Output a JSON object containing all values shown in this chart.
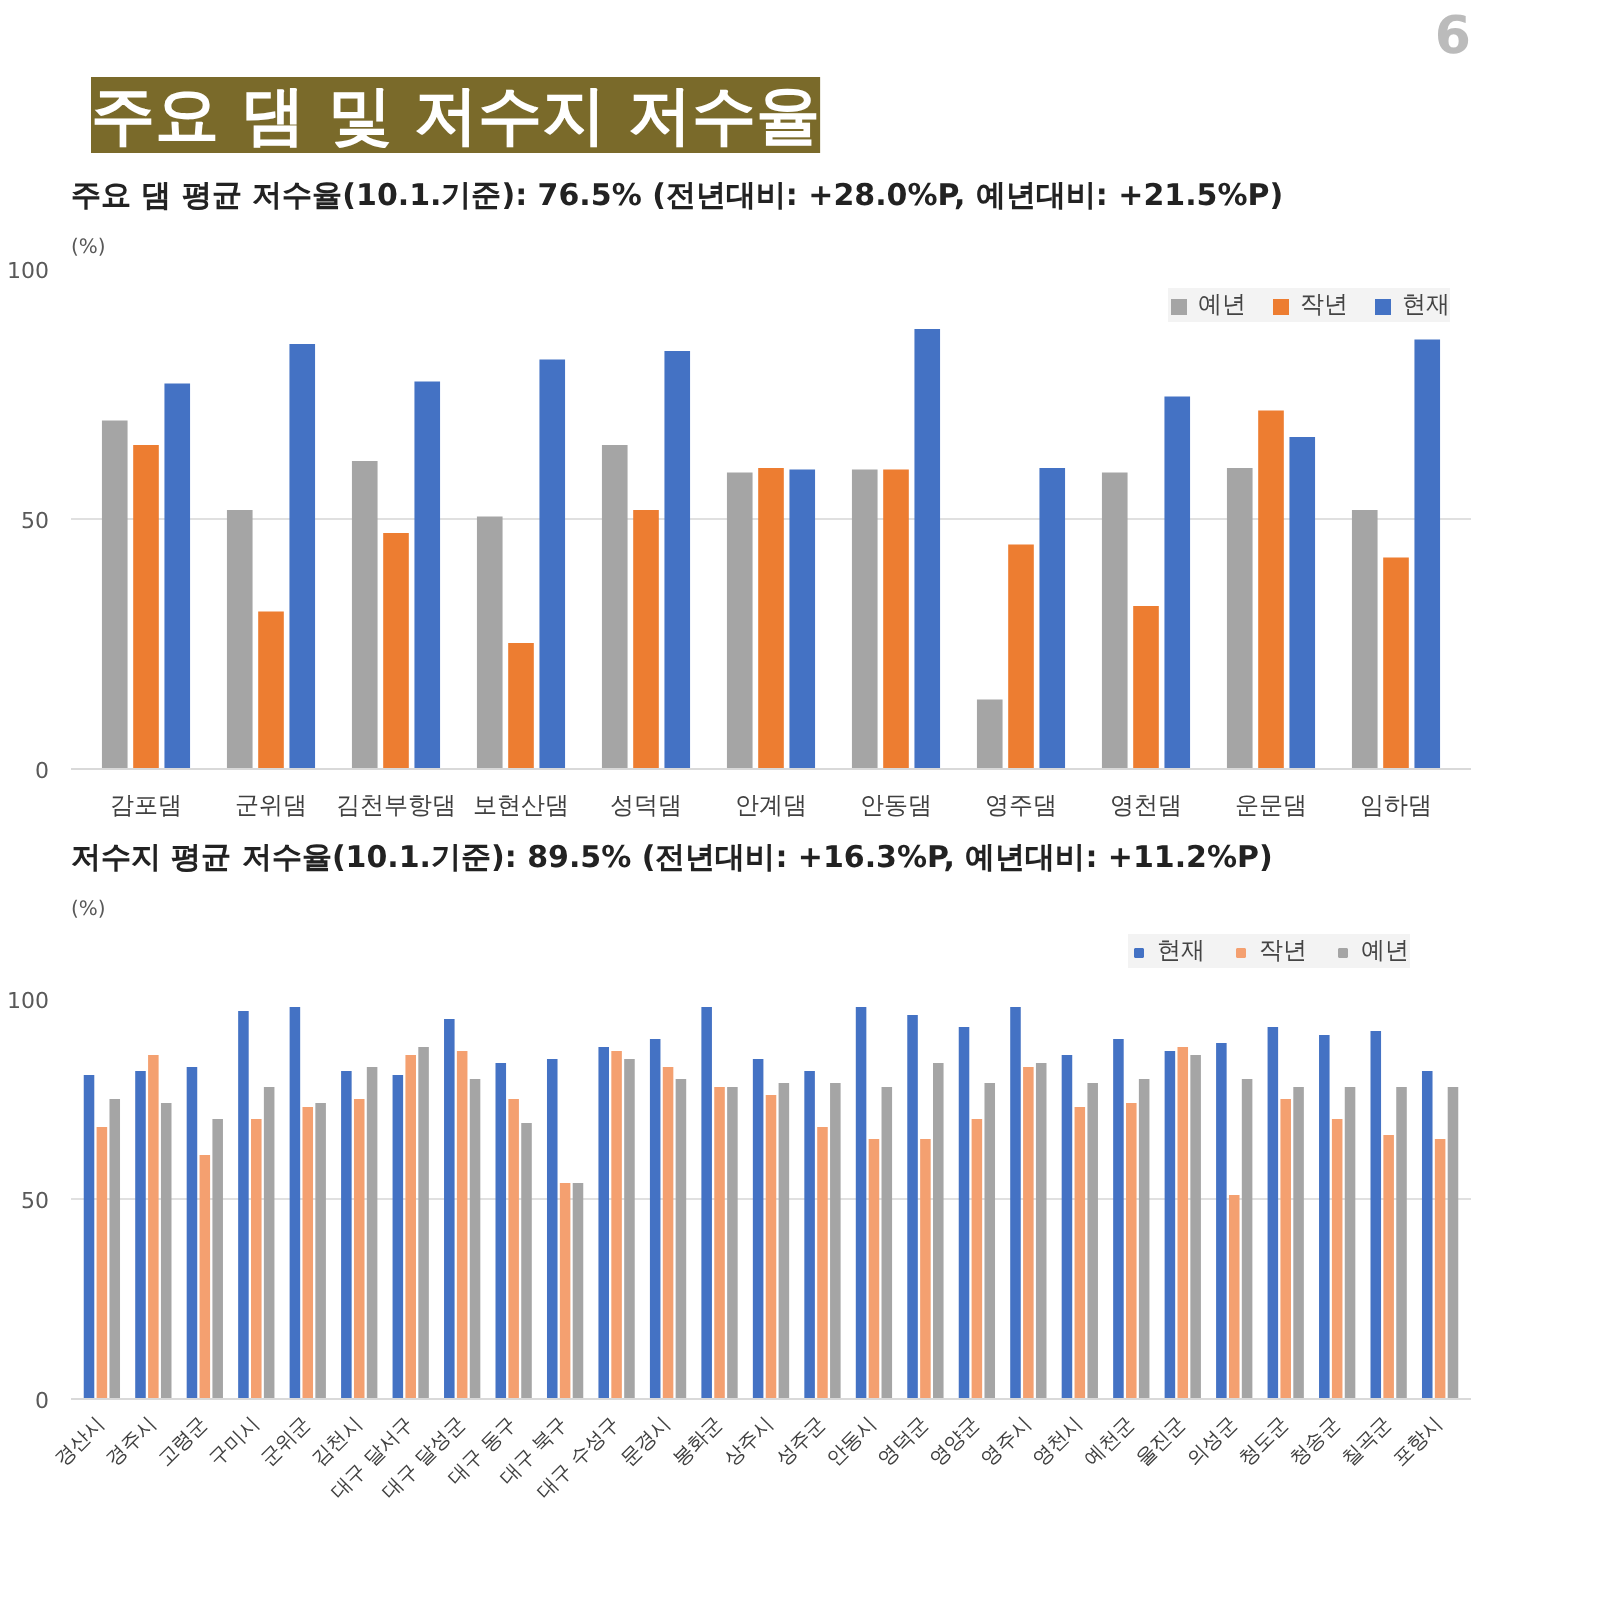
{
  "chart_data": [
    {
      "type": "bar",
      "title": "주요 댐 및 저수지 저수율",
      "subtitle": "주요 댐 평균 저수율(10.1.기준): 76.5% (전년대비: +28.0%P, 예년대비: +21.5%P)",
      "annotations": [
        "6"
      ],
      "ylabel": "(%)",
      "categories": [
        "감포댐",
        "군위댐",
        "김천부항댐",
        "보현산댐",
        "성덕댐",
        "안계댐",
        "안동댐",
        "영주댐",
        "영천댐",
        "운문댐",
        "임하댐"
      ],
      "series": [
        {
          "name": "예년",
          "color": "#a5a5a5",
          "values": [
            69.7,
            51.8,
            61.6,
            50.5,
            64.8,
            59.3,
            59.9,
            13.9,
            59.3,
            60.2,
            51.8
          ]
        },
        {
          "name": "작년",
          "color": "#ed7d31",
          "values": [
            64.8,
            31.5,
            47.2,
            25.2,
            51.8,
            60.2,
            59.9,
            44.9,
            32.6,
            71.7,
            42.3
          ]
        },
        {
          "name": "현재",
          "color": "#4472c4",
          "values": [
            77.1,
            85.0,
            77.5,
            81.9,
            83.6,
            59.9,
            88.0,
            60.2,
            74.5,
            66.4,
            85.9
          ]
        }
      ],
      "ylim": [
        0,
        100
      ],
      "yticks": [
        0,
        50,
        100
      ],
      "grid": "y",
      "legend": "top right"
    },
    {
      "type": "bar",
      "title": "저수지 평균 저수율(10.1.기준): 89.5% (전년대비: +16.3%P, 예년대비: +11.2%P)",
      "ylabel": "(%)",
      "categories": [
        "경산시",
        "경주시",
        "고령군",
        "구미시",
        "군위군",
        "김천시",
        "대구 달서구",
        "대구 달성군",
        "대구 동구",
        "대구 북구",
        "대구 수성구",
        "문경시",
        "봉화군",
        "상주시",
        "성주군",
        "안동시",
        "영덕군",
        "영양군",
        "영주시",
        "영천시",
        "예천군",
        "울진군",
        "의성군",
        "청도군",
        "청송군",
        "칠곡군",
        "포항시"
      ],
      "series": [
        {
          "name": "현재",
          "color": "#4472c4",
          "values": [
            81,
            82,
            83,
            97,
            98,
            82,
            81,
            95,
            84,
            85,
            88,
            90,
            98,
            85,
            82,
            98,
            96,
            93,
            98,
            86,
            90,
            87,
            89,
            93,
            91,
            92,
            82
          ]
        },
        {
          "name": "작년",
          "color": "#f4a070",
          "values": [
            68,
            86,
            61,
            70,
            73,
            75,
            86,
            87,
            75,
            54,
            87,
            83,
            78,
            76,
            68,
            65,
            65,
            70,
            83,
            73,
            74,
            88,
            51,
            75,
            70,
            66,
            65
          ]
        },
        {
          "name": "예년",
          "color": "#a5a5a5",
          "values": [
            75,
            74,
            70,
            78,
            74,
            83,
            88,
            80,
            69,
            54,
            85,
            80,
            78,
            79,
            79,
            78,
            84,
            79,
            84,
            79,
            80,
            86,
            80,
            78,
            78,
            78,
            78
          ]
        }
      ],
      "ylim": [
        0,
        100
      ],
      "yticks": [
        0,
        50,
        100
      ],
      "grid": "y",
      "legend": "top right"
    }
  ]
}
